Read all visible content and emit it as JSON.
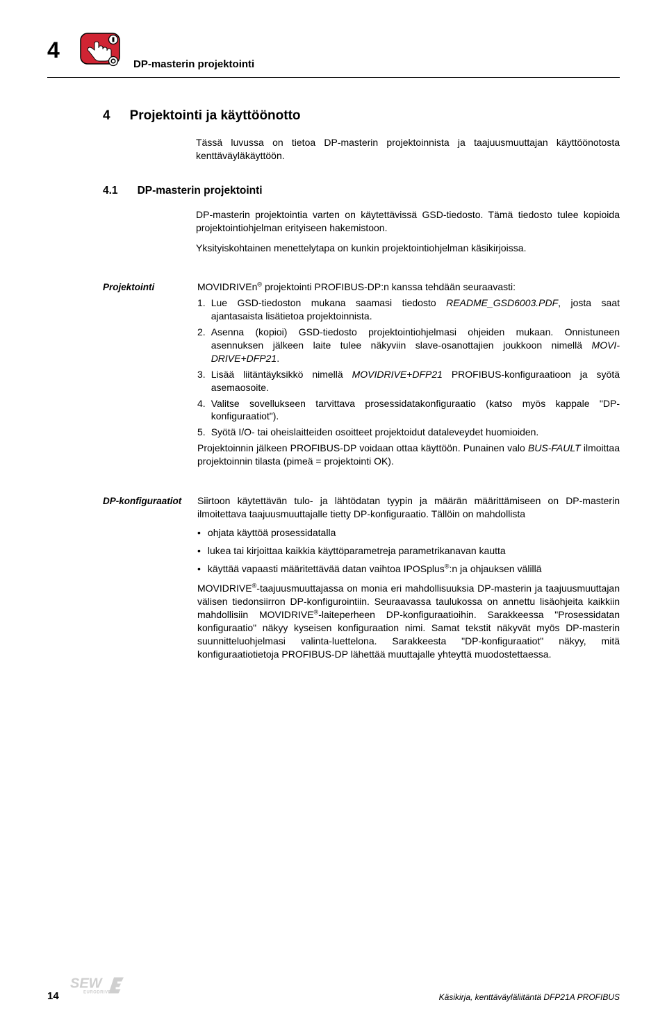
{
  "header": {
    "chapter_number": "4",
    "title": "DP-masterin projektointi",
    "icon": {
      "name": "hand-button-icon",
      "bg": "#d02433",
      "border": "#000000"
    }
  },
  "h1": {
    "number": "4",
    "text": "Projektointi ja käyttöönotto"
  },
  "intro": "Tässä luvussa on tietoa DP-masterin projektoinnista ja taajuusmuuttajan käyttöönotosta kenttäväyläkäyttöön.",
  "h2": {
    "number": "4.1",
    "text": "DP-masterin projektointi"
  },
  "h2_paras": [
    "DP-masterin projektointia varten on käytettävissä GSD-tiedosto. Tämä tiedosto tulee kopioida projektointiohjelman erityiseen hakemistoon.",
    "Yksityiskohtainen menettelytapa on kunkin projektointiohjelman käsikirjoissa."
  ],
  "sections": [
    {
      "label": "Projektointi",
      "lead_pre": "MOVIDRIVEn",
      "lead_post": " projektointi PROFIBUS-DP:n kanssa tehdään seuraavasti:",
      "numbered": [
        {
          "n": "1.",
          "html": "Lue GSD-tiedoston mukana saamasi tiedosto <span class=\"italic\">README_GSD6003.PDF</span>, josta saat ajantasaista lisätietoa projektoinnista."
        },
        {
          "n": "2.",
          "html": "Asenna (kopioi) GSD-tiedosto projektointiohjelmasi ohjeiden mukaan. Onnistuneen asennuksen jälkeen laite tulee näkyviin slave-osanottajien joukkoon nimellä <span class=\"italic\">MOVI-DRIVE+DFP21</span>."
        },
        {
          "n": "3.",
          "html": "Lisää liitäntäyksikkö nimellä <span class=\"italic\">MOVIDRIVE+DFP21</span> PROFIBUS-konfiguraatioon ja syötä asemaosoite."
        },
        {
          "n": "4.",
          "html": "Valitse sovellukseen tarvittava prosessidatakonfiguraatio (katso myös kappale \"DP-konfiguraatiot\")."
        },
        {
          "n": "5.",
          "html": "Syötä I/O- tai oheislaitteiden osoitteet projektoidut dataleveydet huomioiden."
        }
      ],
      "trailer_html": "Projektoinnin jälkeen PROFIBUS-DP voidaan ottaa käyttöön. Punainen valo <span class=\"italic\">BUS-FAULT</span> ilmoittaa projektoinnin tilasta (pimeä = projektointi OK)."
    },
    {
      "label": "DP-konfiguraatiot",
      "lead_html": "Siirtoon käytettävän tulo- ja lähtödatan tyypin ja määrän määrittämiseen on DP-masterin ilmoitettava taajuusmuuttajalle tietty DP-konfiguraatio. Tällöin on mahdollista",
      "bullets": [
        "ohjata käyttöä prosessidatalla",
        "lukea tai kirjoittaa kaikkia käyttöparametreja parametrikanavan kautta",
        "käyttää vapaasti määritettävää datan vaihtoa IPOSplus<sup>®</sup>:n ja ohjauksen välillä"
      ],
      "trailer_html": "MOVIDRIVE<sup>®</sup>-taajuusmuuttajassa on monia eri mahdollisuuksia DP-masterin ja taajuusmuuttajan välisen tiedonsiirron DP-konfigurointiin. Seuraavassa taulukossa on annettu lisäohjeita kaikkiin mahdollisiin MOVIDRIVE<sup>®</sup>-laiteperheen DP-konfiguraatioihin. Sarakkeessa \"Prosessidatan konfiguraatio\" näkyy kyseisen konfiguraation nimi. Samat tekstit näkyvät myös DP-masterin suunnitteluohjelmasi valinta-luettelona. Sarakkeesta \"DP-konfiguraatiot\" näkyy, mitä konfiguraatiotietoja PROFIBUS-DP lähettää muuttajalle yhteyttä muodostettaessa."
    }
  ],
  "footer": {
    "page": "14",
    "right_text": "Käsikirja, kenttäväyläliitäntä DFP21A PROFIBUS",
    "logo": {
      "brand": "SEW",
      "sub": "EURODRIVE",
      "fill": "#cfcfcf"
    }
  }
}
